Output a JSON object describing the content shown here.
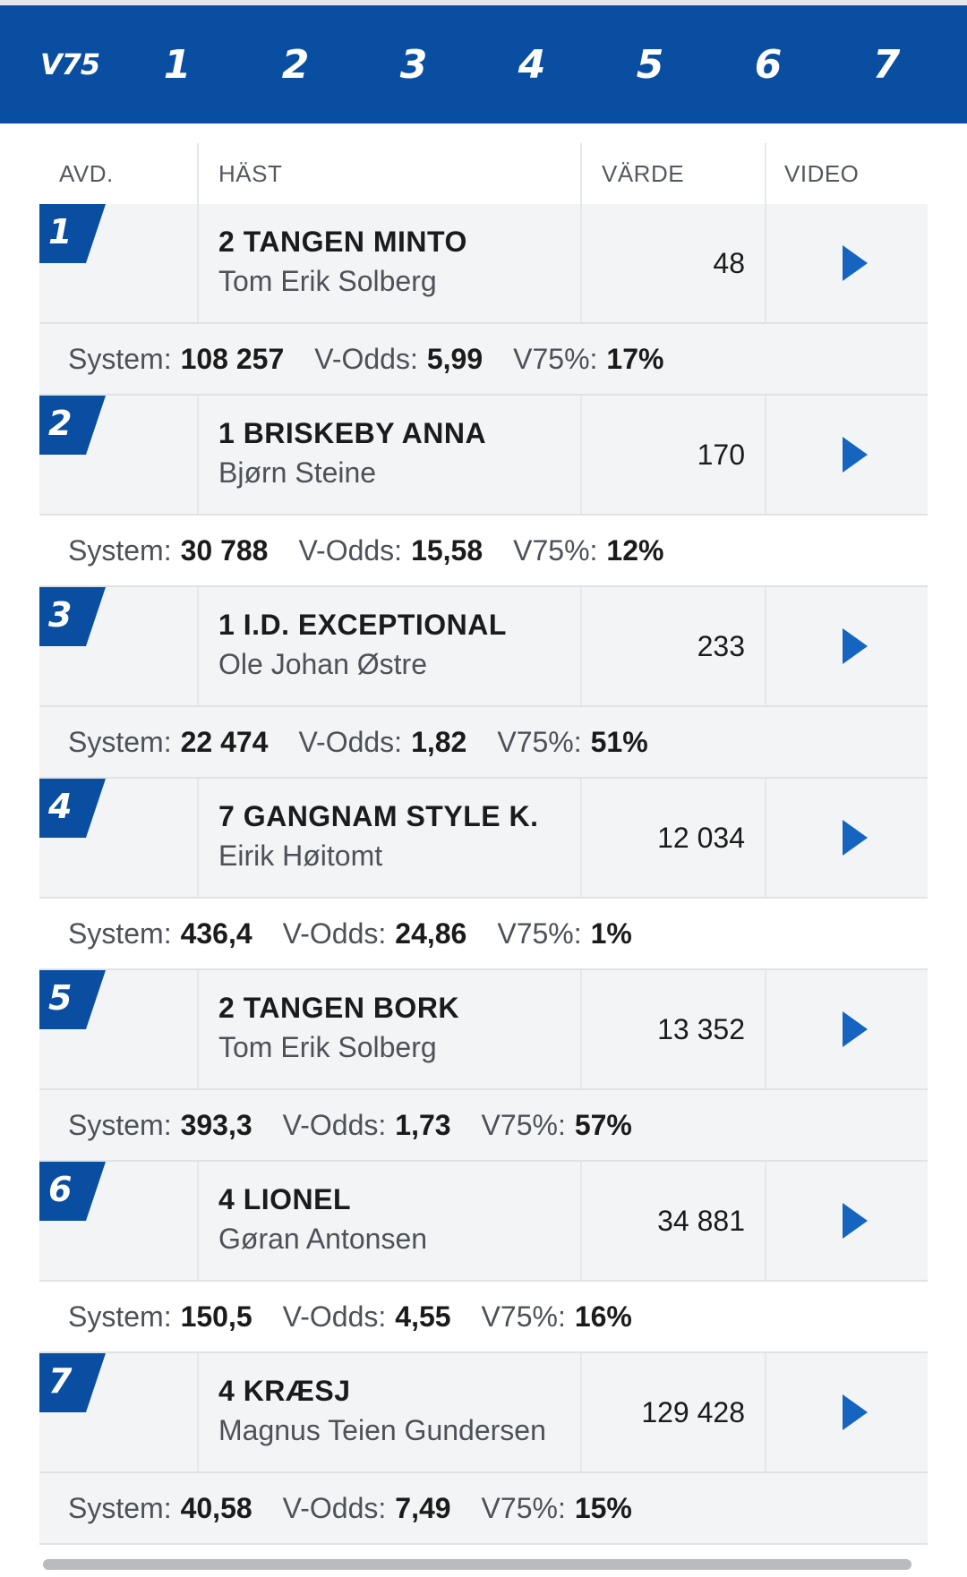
{
  "nav": {
    "tabs": [
      {
        "label": "V75",
        "kind": "game"
      },
      {
        "label": "1",
        "kind": "num"
      },
      {
        "label": "2",
        "kind": "num"
      },
      {
        "label": "3",
        "kind": "num"
      },
      {
        "label": "4",
        "kind": "num"
      },
      {
        "label": "5",
        "kind": "num"
      },
      {
        "label": "6",
        "kind": "num"
      },
      {
        "label": "7",
        "kind": "num"
      }
    ]
  },
  "table": {
    "headers": {
      "avd": "AVD.",
      "horse": "HÄST",
      "value": "VÄRDE",
      "video": "VIDEO"
    },
    "labels": {
      "system": "System:",
      "vodds": "V-Odds:",
      "pct": "V75%:"
    },
    "rows": [
      {
        "avd": "1",
        "horse": "2 TANGEN MINTO",
        "driver": "Tom Erik Solberg",
        "value": "48",
        "system": "108 257",
        "vodds": "5,99",
        "pct": "17%"
      },
      {
        "avd": "2",
        "horse": "1 BRISKEBY ANNA",
        "driver": "Bjørn Steine",
        "value": "170",
        "system": "30 788",
        "vodds": "15,58",
        "pct": "12%"
      },
      {
        "avd": "3",
        "horse": "1 I.D. EXCEPTIONAL",
        "driver": "Ole Johan Østre",
        "value": "233",
        "system": "22 474",
        "vodds": "1,82",
        "pct": "51%"
      },
      {
        "avd": "4",
        "horse": "7 GANGNAM STYLE K.",
        "driver": "Eirik Høitomt",
        "value": "12 034",
        "system": "436,4",
        "vodds": "24,86",
        "pct": "1%"
      },
      {
        "avd": "5",
        "horse": "2 TANGEN BORK",
        "driver": "Tom Erik Solberg",
        "value": "13 352",
        "system": "393,3",
        "vodds": "1,73",
        "pct": "57%"
      },
      {
        "avd": "6",
        "horse": "4 LIONEL",
        "driver": "Gøran Antonsen",
        "value": "34 881",
        "system": "150,5",
        "vodds": "4,55",
        "pct": "16%"
      },
      {
        "avd": "7",
        "horse": "4 KRÆSJ",
        "driver": "Magnus Teien Gundersen",
        "value": "129 428",
        "system": "40,58",
        "vodds": "7,49",
        "pct": "15%"
      }
    ]
  },
  "colors": {
    "brand": "#0a4ea1",
    "row_bg": "#f3f4f5",
    "play_icon": "#1565c0"
  },
  "icons": {
    "play": "play-icon"
  }
}
